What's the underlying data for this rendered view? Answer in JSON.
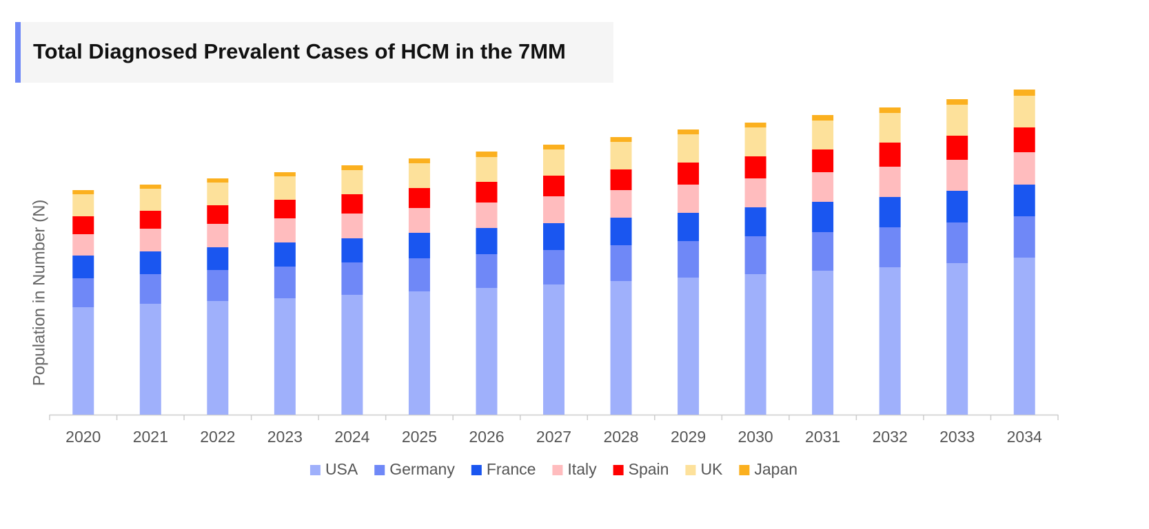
{
  "chart_data": {
    "type": "stacked-bar",
    "title": "Total Diagnosed Prevalent Cases of HCM in the 7MM",
    "y_label": "Population in Number (N)",
    "categories": [
      "2020",
      "2021",
      "2022",
      "2023",
      "2024",
      "2025",
      "2026",
      "2027",
      "2028",
      "2029",
      "2030",
      "2031",
      "2032",
      "2033",
      "2034"
    ],
    "ylim": [
      0,
      490
    ],
    "series": [
      {
        "name": "USA",
        "color": "#9fb0fb",
        "values": [
          156,
          161,
          165,
          169,
          174,
          179,
          184,
          189,
          194,
          199,
          204,
          209,
          214,
          220,
          228
        ]
      },
      {
        "name": "Germany",
        "color": "#6f88f7",
        "values": [
          42,
          43,
          45,
          46,
          47,
          48,
          49,
          50,
          52,
          53,
          55,
          56,
          58,
          59,
          60
        ]
      },
      {
        "name": "France",
        "color": "#1a56f0",
        "values": [
          33,
          33,
          33,
          35,
          35,
          37,
          38,
          39,
          40,
          41,
          42,
          44,
          44,
          46,
          46
        ]
      },
      {
        "name": "Italy",
        "color": "#ffbcbe",
        "values": [
          31,
          33,
          34,
          35,
          36,
          36,
          37,
          39,
          40,
          41,
          42,
          43,
          44,
          45,
          47
        ]
      },
      {
        "name": "Spain",
        "color": "#ff0000",
        "values": [
          26,
          26,
          27,
          27,
          28,
          29,
          30,
          30,
          30,
          32,
          32,
          33,
          35,
          35,
          36
        ]
      },
      {
        "name": "UK",
        "color": "#fde19b",
        "values": [
          32,
          32,
          33,
          34,
          35,
          36,
          36,
          38,
          40,
          41,
          42,
          42,
          43,
          45,
          46
        ]
      },
      {
        "name": "Japan",
        "color": "#fbb01f",
        "values": [
          6,
          6,
          6,
          6,
          7,
          7,
          8,
          7,
          7,
          7,
          7,
          8,
          8,
          8,
          9
        ]
      }
    ]
  }
}
